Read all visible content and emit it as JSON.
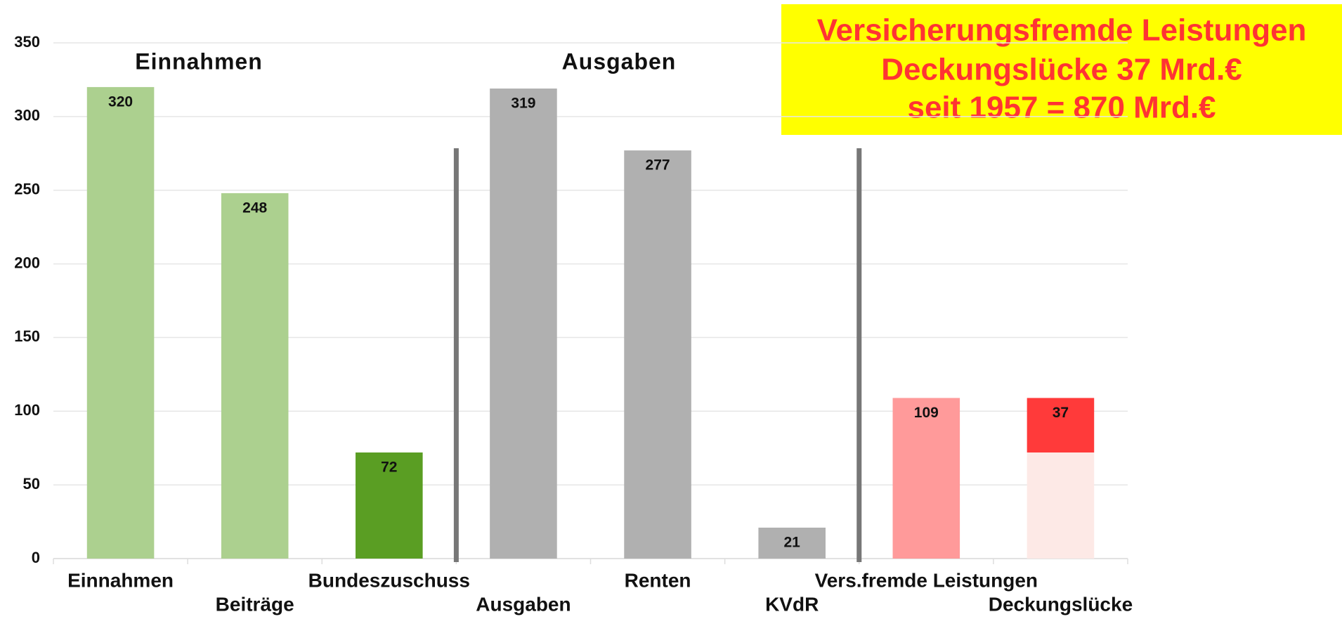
{
  "chart_data": {
    "type": "stacked_bar",
    "categories": [
      "Einnahmen",
      "Beiträge",
      "Bundeszuschuss",
      "Ausgaben",
      "Renten",
      "KVdR",
      "Vers.fremde Leistungen",
      "Deckungslücke"
    ],
    "series": [
      {
        "colors": [
          "#acd08f",
          "#acd08f",
          "#5a9e23",
          "#b0b0b0",
          "#b0b0b0",
          "#b0b0b0",
          "#ff9a9a",
          "#fde9e6"
        ],
        "values": [
          320,
          248,
          72,
          319,
          277,
          21,
          109,
          72
        ],
        "value_labels": [
          "320",
          "248",
          "72",
          "319",
          "277",
          "21",
          "109",
          null
        ]
      },
      {
        "colors": [
          null,
          null,
          null,
          null,
          null,
          null,
          null,
          "#ff3a3a"
        ],
        "values": [
          null,
          null,
          null,
          null,
          null,
          null,
          null,
          37
        ]
      }
    ],
    "group_titles": [
      "Einnahmen",
      "Ausgaben"
    ],
    "annotation": [
      "Versicherungsfremde Leistungen",
      "Deckungslücke 37 Mrd.€",
      "seit 1957 = 870 Mrd.€"
    ],
    "ylim": [
      0,
      350
    ],
    "yticks": [
      0,
      50,
      100,
      150,
      200,
      250,
      300,
      350
    ],
    "grid": true
  }
}
